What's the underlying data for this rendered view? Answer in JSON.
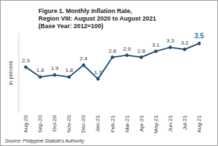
{
  "chart_data": {
    "type": "line",
    "title": "Figure 1. Monthly Inflation Rate,\nRegion VIII: August 2020 to August 2021",
    "subtitle": "(Base Year: 2012=100)",
    "y_label": "in percent",
    "source": "Source: Philippine Statistics Authority",
    "categories": [
      "Aug-20",
      "Sep-20",
      "Oct-20",
      "Nov-20",
      "Dec-20",
      "Jan-21",
      "Feb-21",
      "Mar-21",
      "Apr-21",
      "May-21",
      "Jun-21",
      "Jul-21",
      "Aug-21"
    ],
    "values": [
      2.3,
      1.8,
      1.9,
      1.8,
      2.4,
      1.7,
      2.8,
      2.9,
      2.8,
      3.1,
      3.3,
      3.2,
      3.5
    ],
    "color": "#1f4e79",
    "marker": "circle",
    "ylim": [
      0,
      4
    ],
    "grid": false,
    "data_labels": true,
    "tick_labels": "x"
  }
}
